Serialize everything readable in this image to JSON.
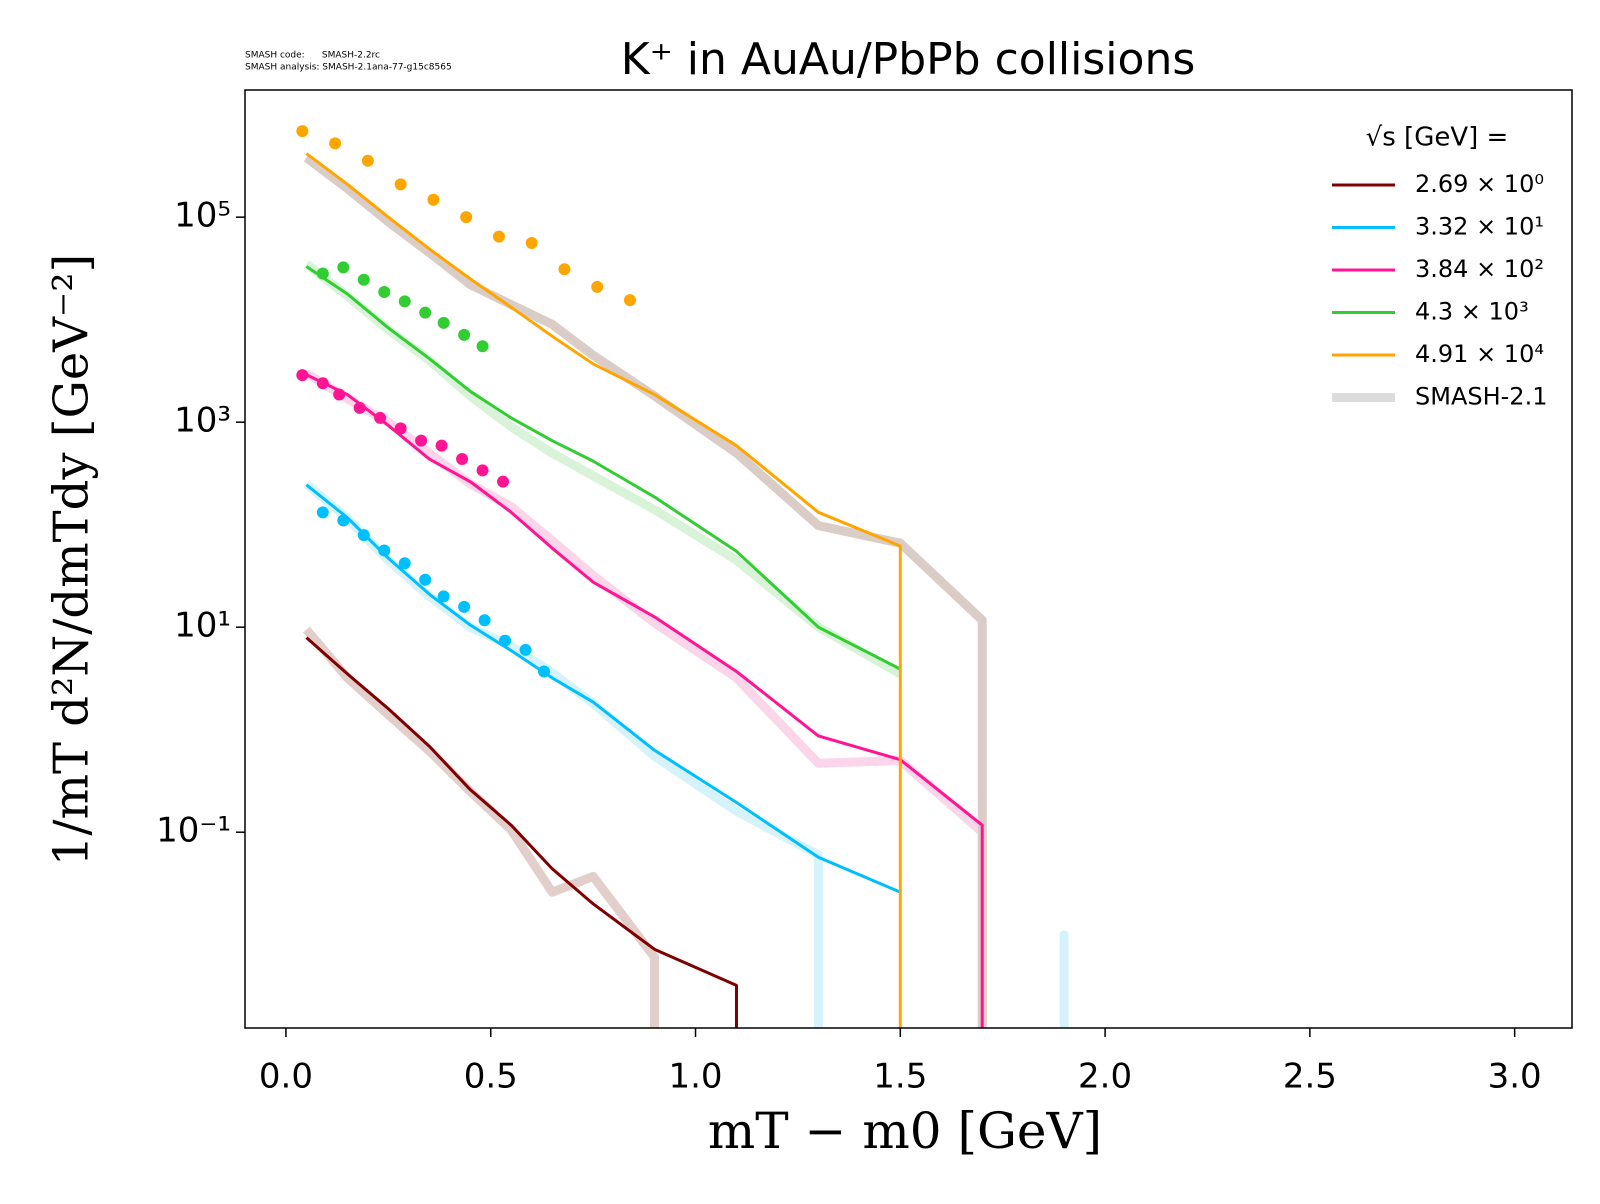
{
  "chart_data": {
    "type": "line",
    "title": "K⁺ in AuAu/PbPb collisions",
    "code_note": [
      "SMASH code:      SMASH-2.2rc",
      "SMASH analysis: SMASH-2.1ana-77-g15c8565"
    ],
    "x_label": "mT − m0 [GeV]",
    "y_label": "1/mT d²N/dmTdy [GeV⁻²]",
    "xlim": [
      -0.1,
      3.14
    ],
    "ylim": [
      0.00123,
      1740000
    ],
    "yscale": "log",
    "xticks": [
      {
        "value": 0,
        "label": "0.0"
      },
      0.5,
      {
        "value": 1,
        "label": "1.0"
      },
      1.5,
      {
        "value": 2,
        "label": "2.0"
      },
      2.5,
      {
        "value": 3,
        "label": "3.0"
      }
    ],
    "yticks": [
      {
        "value": 0.1,
        "label": "10⁻¹"
      },
      {
        "value": 10,
        "label": "10¹"
      },
      {
        "value": 1000,
        "label": "10³"
      },
      {
        "value": 100000,
        "label": "10⁵"
      }
    ],
    "legend": "upper right",
    "legend_title": "√s  [GeV] =",
    "series": [
      {
        "name": "2.69 × 10⁰",
        "color": "#800000",
        "x": [
          0.05,
          0.15,
          0.25,
          0.35,
          0.45,
          0.55,
          0.65,
          0.75,
          0.9,
          1.1,
          1.3
        ],
        "values": [
          7.9,
          3.5,
          1.6,
          0.69,
          0.26,
          0.117,
          0.044,
          0.02,
          0.0072,
          0.0032,
          0
        ]
      },
      {
        "name": "3.32 × 10¹",
        "color": "#00bfff",
        "x": [
          0.05,
          0.15,
          0.25,
          0.35,
          0.45,
          0.55,
          0.65,
          0.75,
          0.9,
          1.1,
          1.3,
          1.5
        ],
        "values": [
          245,
          117,
          47,
          21,
          10.5,
          5.9,
          3.2,
          1.86,
          0.63,
          0.195,
          0.057,
          0.026
        ],
        "points": {
          "x": [
            0.09,
            0.14,
            0.19,
            0.24,
            0.29,
            0.34,
            0.385,
            0.435,
            0.485,
            0.535,
            0.585,
            0.63
          ],
          "values": [
            132,
            110,
            79,
            56,
            42,
            29,
            20,
            15.8,
            11.7,
            7.4,
            6.0,
            3.7
          ]
        }
      },
      {
        "name": "3.84 × 10²",
        "color": "#ff1493",
        "x": [
          0.05,
          0.15,
          0.25,
          0.35,
          0.45,
          0.55,
          0.65,
          0.75,
          0.9,
          1.1,
          1.3,
          1.5,
          1.7,
          1.9
        ],
        "values": [
          2900,
          1860,
          930,
          437,
          263,
          132,
          59,
          27.5,
          12.6,
          3.7,
          0.87,
          0.51,
          0.117,
          0
        ],
        "points": {
          "x": [
            0.04,
            0.09,
            0.13,
            0.18,
            0.23,
            0.28,
            0.33,
            0.38,
            0.43,
            0.48,
            0.53
          ],
          "values": [
            2880,
            2400,
            1860,
            1380,
            1100,
            870,
            660,
            590,
            437,
            339,
            263
          ]
        }
      },
      {
        "name": "4.3 × 10³",
        "color": "#32cd32",
        "x": [
          0.05,
          0.15,
          0.25,
          0.35,
          0.45,
          0.55,
          0.65,
          0.75,
          0.9,
          1.1,
          1.3,
          1.5
        ],
        "values": [
          33000,
          17800,
          8300,
          4170,
          2000,
          1100,
          660,
          417,
          186,
          55,
          10,
          3.9
        ],
        "points": {
          "x": [
            0.09,
            0.14,
            0.19,
            0.24,
            0.29,
            0.34,
            0.385,
            0.435,
            0.48
          ],
          "values": [
            28200,
            32400,
            24500,
            18600,
            15100,
            11700,
            9300,
            7100,
            5500
          ]
        }
      },
      {
        "name": "4.91 × 10⁴",
        "color": "#ffa500",
        "x": [
          0.05,
          0.15,
          0.25,
          0.35,
          0.45,
          0.55,
          0.65,
          0.75,
          0.9,
          1.1,
          1.3,
          1.5,
          1.7
        ],
        "values": [
          417000,
          209000,
          100000,
          49000,
          25000,
          13200,
          6900,
          3700,
          1860,
          590,
          132,
          62,
          0
        ],
        "points": {
          "x": [
            0.04,
            0.12,
            0.2,
            0.28,
            0.36,
            0.44,
            0.52,
            0.6,
            0.68,
            0.76,
            0.84
          ],
          "values": [
            690000,
            525000,
            355000,
            209000,
            148000,
            100000,
            64600,
            56000,
            31000,
            20900,
            15500
          ]
        }
      }
    ],
    "smash21": {
      "name": "SMASH-2.1",
      "color": "#dcdcdc",
      "curves": [
        {
          "color": "#e2cfcc",
          "x": [
            0.05,
            0.15,
            0.25,
            0.35,
            0.45,
            0.55,
            0.65,
            0.75,
            0.9,
            1.1
          ],
          "values": [
            9.5,
            3.2,
            1.4,
            0.62,
            0.25,
            0.105,
            0.026,
            0.037,
            0.006,
            0
          ]
        },
        {
          "color": "#d6f3fb",
          "x": [
            0.05,
            0.15,
            0.25,
            0.35,
            0.45,
            0.55,
            0.65,
            0.75,
            0.9,
            1.1,
            1.3,
            1.5,
            1.7,
            1.9,
            2.1
          ],
          "values": [
            250,
            115,
            45,
            20,
            10,
            6.5,
            3.6,
            1.8,
            0.55,
            0.16,
            0.06,
            0,
            0,
            0.01,
            0
          ]
        },
        {
          "color": "#fbd6ea",
          "x": [
            0.05,
            0.15,
            0.25,
            0.35,
            0.45,
            0.55,
            0.65,
            0.75,
            0.9,
            1.1,
            1.3,
            1.5,
            1.7,
            1.9
          ],
          "values": [
            3000,
            1700,
            1000,
            500,
            250,
            150,
            70,
            32,
            11,
            3.2,
            0.47,
            0.5,
            0.1,
            0
          ]
        },
        {
          "color": "#d8f3d8",
          "x": [
            0.05,
            0.15,
            0.25,
            0.35,
            0.45,
            0.55,
            0.65,
            0.75,
            0.9,
            1.1,
            1.3,
            1.5
          ],
          "values": [
            35000,
            17000,
            8000,
            4000,
            1800,
            900,
            500,
            300,
            140,
            45,
            10,
            3.5
          ]
        },
        {
          "color": "#dacdc7",
          "x": [
            0.05,
            0.15,
            0.25,
            0.35,
            0.45,
            0.55,
            0.65,
            0.75,
            0.9,
            1.1,
            1.3,
            1.5,
            1.7,
            1.9
          ],
          "values": [
            380000,
            190000,
            90000,
            45000,
            22000,
            14000,
            9000,
            4500,
            1800,
            500,
            98,
            66,
            11.7,
            0
          ]
        }
      ]
    }
  }
}
